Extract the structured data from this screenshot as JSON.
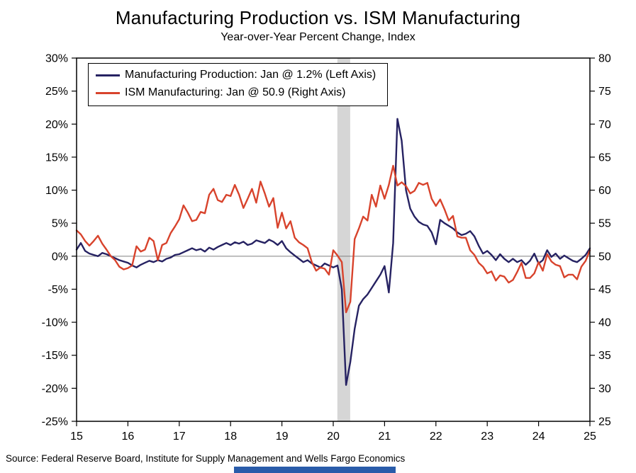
{
  "title": "Manufacturing Production vs. ISM Manufacturing",
  "subtitle": "Year-over-Year Percent Change, Index",
  "source": "Source: Federal Reserve Board, Institute for Supply Management and Wells Fargo Economics",
  "legend": {
    "series1": "Manufacturing Production: Jan @ 1.2% (Left Axis)",
    "series2": "ISM Manufacturing: Jan @ 50.9 (Right Axis)"
  },
  "colors": {
    "production": "#262262",
    "ism": "#d8432c",
    "recession_band": "#d6d6d6",
    "zero_line": "#7f7f7f",
    "axis": "#000000",
    "accent_bar": "#2a5caa"
  },
  "chart_data": {
    "type": "line",
    "title": "Manufacturing Production vs. ISM Manufacturing",
    "subtitle": "Year-over-Year Percent Change, Index",
    "x_frequency": "monthly",
    "x_start_year": 2015,
    "x_end_year": 2025,
    "x_tick_labels": [
      "15",
      "16",
      "17",
      "18",
      "19",
      "20",
      "21",
      "22",
      "23",
      "24",
      "25"
    ],
    "left_axis": {
      "label": "Year-over-Year Percent Change",
      "min": -25,
      "max": 30,
      "step": 5,
      "tick_labels": [
        "30%",
        "25%",
        "20%",
        "15%",
        "10%",
        "5%",
        "0%",
        "-5%",
        "-10%",
        "-15%",
        "-20%",
        "-25%"
      ]
    },
    "right_axis": {
      "label": "Index",
      "min": 25,
      "max": 80,
      "step": 5,
      "tick_labels": [
        "80",
        "75",
        "70",
        "65",
        "60",
        "55",
        "50",
        "45",
        "40",
        "35",
        "30",
        "25"
      ]
    },
    "recession_band": {
      "from": 2020.08,
      "to": 2020.33
    },
    "zero_reference_line": 0,
    "series": [
      {
        "name": "Manufacturing Production (YoY %, Left Axis)",
        "axis": "left",
        "color_key": "production",
        "latest_label": "Jan @ 1.2%",
        "values": [
          1.0,
          2.0,
          0.8,
          0.4,
          0.2,
          0.0,
          0.5,
          0.3,
          0.0,
          -0.3,
          -0.6,
          -0.8,
          -1.0,
          -1.4,
          -1.7,
          -1.3,
          -1.0,
          -0.7,
          -0.9,
          -0.6,
          -0.8,
          -0.4,
          -0.2,
          0.2,
          0.3,
          0.6,
          0.9,
          1.2,
          0.9,
          1.1,
          0.7,
          1.3,
          1.0,
          1.4,
          1.7,
          2.0,
          1.7,
          2.1,
          1.9,
          2.2,
          1.7,
          1.9,
          2.4,
          2.2,
          2.0,
          2.5,
          2.2,
          1.7,
          2.3,
          1.2,
          0.6,
          0.1,
          -0.4,
          -0.9,
          -0.6,
          -1.1,
          -1.4,
          -1.7,
          -1.1,
          -1.4,
          -1.7,
          -1.4,
          -5.0,
          -19.5,
          -16.0,
          -11.0,
          -7.5,
          -6.5,
          -5.8,
          -4.8,
          -3.8,
          -2.8,
          -1.5,
          -5.5,
          2.0,
          20.8,
          17.5,
          10.0,
          7.2,
          6.0,
          5.2,
          4.8,
          4.6,
          3.6,
          1.8,
          5.5,
          5.0,
          4.6,
          4.2,
          3.6,
          3.2,
          3.4,
          3.8,
          3.0,
          1.6,
          0.4,
          0.8,
          0.2,
          -0.6,
          0.3,
          -0.4,
          -0.9,
          -0.4,
          -0.9,
          -0.6,
          -1.3,
          -0.7,
          0.4,
          -1.1,
          -0.6,
          0.9,
          -0.1,
          0.4,
          -0.4,
          0.1,
          -0.3,
          -0.7,
          -0.9,
          -0.4,
          0.2,
          1.2
        ]
      },
      {
        "name": "ISM Manufacturing (Index, Right Axis)",
        "axis": "right",
        "color_key": "ism",
        "latest_label": "Jan @ 50.9",
        "values": [
          53.9,
          53.3,
          52.3,
          51.6,
          52.3,
          53.1,
          51.9,
          51.0,
          50.0,
          49.4,
          48.4,
          48.0,
          48.2,
          48.6,
          51.5,
          50.7,
          51.0,
          52.8,
          52.3,
          49.4,
          51.7,
          52.0,
          53.5,
          54.5,
          55.6,
          57.7,
          56.6,
          55.3,
          55.5,
          56.7,
          56.5,
          59.3,
          60.2,
          58.5,
          58.2,
          59.3,
          59.1,
          60.8,
          59.3,
          57.3,
          58.7,
          60.2,
          58.1,
          61.3,
          59.5,
          57.5,
          58.8,
          54.3,
          56.6,
          54.2,
          55.3,
          52.8,
          52.1,
          51.7,
          51.2,
          49.1,
          47.8,
          48.3,
          48.1,
          47.2,
          50.9,
          50.1,
          49.1,
          41.5,
          43.1,
          52.6,
          54.2,
          56.0,
          55.4,
          59.3,
          57.5,
          60.7,
          58.7,
          60.8,
          63.7,
          60.7,
          61.2,
          60.6,
          59.5,
          59.9,
          61.1,
          60.8,
          61.1,
          58.7,
          57.6,
          58.6,
          57.1,
          55.4,
          56.1,
          53.0,
          52.8,
          52.8,
          50.9,
          50.2,
          49.0,
          48.4,
          47.4,
          47.7,
          46.3,
          47.1,
          46.9,
          46.0,
          46.4,
          47.6,
          49.0,
          46.7,
          46.7,
          47.4,
          49.1,
          47.8,
          50.3,
          49.2,
          48.7,
          48.5,
          46.8,
          47.2,
          47.2,
          46.5,
          48.4,
          49.3,
          50.9
        ]
      }
    ]
  }
}
